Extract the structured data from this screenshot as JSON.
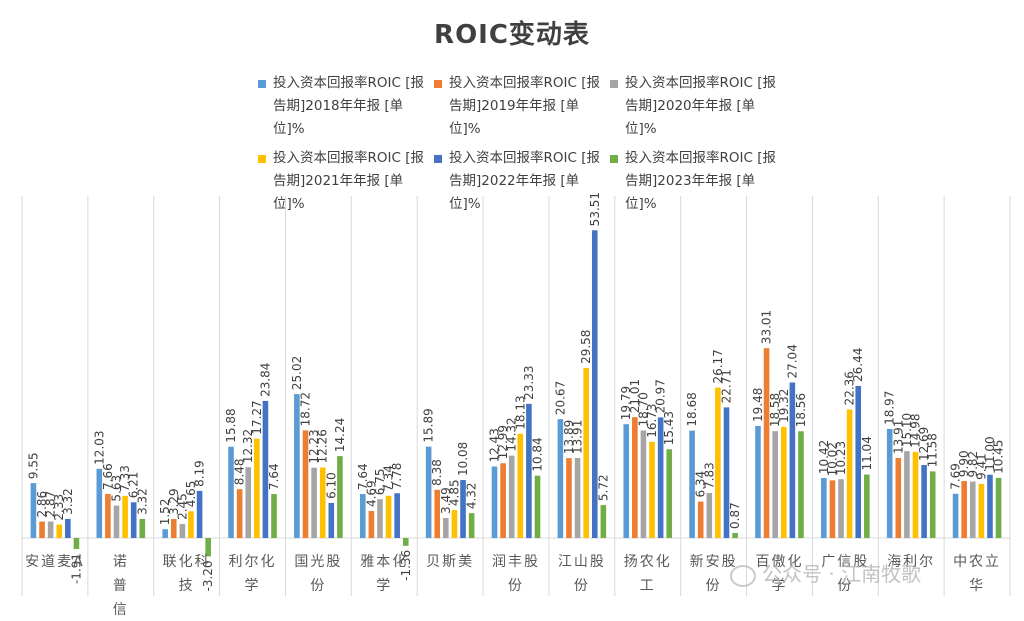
{
  "chart_data": {
    "type": "bar",
    "title": "ROIC变动表",
    "categories": [
      [
        "安道麦A"
      ],
      [
        "诺",
        "普",
        "信"
      ],
      [
        "联化科",
        "技"
      ],
      [
        "利尔化",
        "学"
      ],
      [
        "国光股",
        "份"
      ],
      [
        "雅本化",
        "学"
      ],
      [
        "贝斯美"
      ],
      [
        "润丰股",
        "份"
      ],
      [
        "江山股",
        "份"
      ],
      [
        "扬农化",
        "工"
      ],
      [
        "新安股",
        "份"
      ],
      [
        "百傲化",
        "学"
      ],
      [
        "广信股",
        "份"
      ],
      [
        "海利尔"
      ],
      [
        "中农立",
        "华"
      ]
    ],
    "series": [
      {
        "name": "投入资本回报率ROIC [报告期]2018年年报 [单位]%",
        "color": "#5B9BD5",
        "values": [
          9.55,
          12.03,
          1.52,
          15.88,
          25.02,
          7.64,
          15.89,
          12.43,
          20.67,
          19.79,
          18.68,
          19.48,
          10.42,
          18.97,
          7.69
        ]
      },
      {
        "name": "投入资本回报率ROIC [报告期]2019年年报 [单位]%",
        "color": "#ED7D31",
        "values": [
          2.86,
          7.66,
          3.29,
          8.48,
          18.72,
          4.69,
          8.38,
          12.99,
          13.89,
          21.01,
          6.34,
          33.01,
          10.02,
          13.91,
          9.9
        ]
      },
      {
        "name": "投入资本回报率ROIC [报告期]2020年年报 [单位]%",
        "color": "#A5A5A5",
        "values": [
          2.87,
          5.63,
          2.45,
          12.32,
          12.23,
          6.75,
          3.49,
          14.32,
          13.91,
          18.7,
          7.83,
          18.58,
          10.23,
          15.1,
          9.82
        ]
      },
      {
        "name": "投入资本回报率ROIC [报告期]2021年年报 [单位]%",
        "color": "#FFC000",
        "values": [
          2.33,
          7.33,
          4.65,
          17.27,
          12.26,
          7.34,
          4.85,
          18.13,
          29.58,
          16.73,
          26.17,
          19.32,
          22.36,
          14.98,
          9.41
        ]
      },
      {
        "name": "投入资本回报率ROIC [报告期]2022年年报 [单位]%",
        "color": "#4472C4",
        "values": [
          3.32,
          6.21,
          8.19,
          23.84,
          6.1,
          7.78,
          10.08,
          23.33,
          53.51,
          20.97,
          22.71,
          27.04,
          26.44,
          12.69,
          11.0
        ]
      },
      {
        "name": "投入资本回报率ROIC [报告期]2023年年报 [单位]%",
        "color": "#70AD47",
        "values": [
          -1.91,
          3.32,
          -3.2,
          7.64,
          14.24,
          -1.36,
          4.32,
          10.84,
          5.72,
          15.43,
          0.87,
          18.56,
          11.04,
          11.58,
          10.45
        ]
      }
    ],
    "value_label_format": "2 decimals",
    "grid": "vertical category separators only",
    "legend": "top-center, 2 rows x 3 columns",
    "ylim": [
      -5,
      60
    ]
  },
  "watermark": "公众号 · 江南牧歌"
}
